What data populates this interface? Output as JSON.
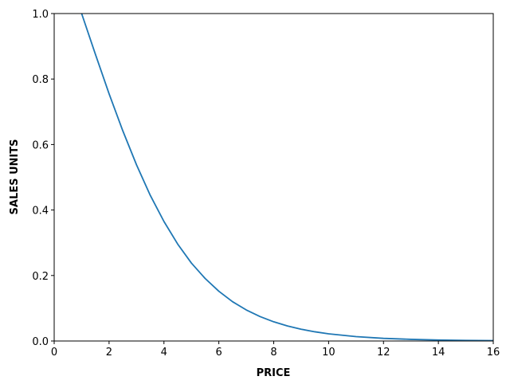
{
  "chart_data": {
    "type": "line",
    "title": "",
    "xlabel": "PRICE",
    "ylabel": "SALES UNITS",
    "xlim": [
      0,
      16
    ],
    "ylim": [
      0.0,
      1.0
    ],
    "xticks": [
      "0",
      "2",
      "4",
      "6",
      "8",
      "10",
      "12",
      "14",
      "16"
    ],
    "yticks": [
      "0.0",
      "0.2",
      "0.4",
      "0.6",
      "0.8",
      "1.0"
    ],
    "grid": false,
    "line_color": "#1f77b4",
    "series": [
      {
        "x": [
          1,
          1.5,
          2,
          2.5,
          3,
          3.5,
          4,
          4.5,
          5,
          5.5,
          6,
          6.5,
          7,
          7.5,
          8,
          8.5,
          9,
          9.5,
          10,
          11,
          12,
          13,
          14,
          15,
          16
        ],
        "y": [
          1.0,
          0.876,
          0.755,
          0.642,
          0.538,
          0.445,
          0.365,
          0.296,
          0.238,
          0.191,
          0.152,
          0.12,
          0.0948,
          0.0747,
          0.0586,
          0.046,
          0.036,
          0.0281,
          0.022,
          0.0134,
          0.0081,
          0.005,
          0.003,
          0.0018,
          0.0011
        ]
      }
    ]
  }
}
